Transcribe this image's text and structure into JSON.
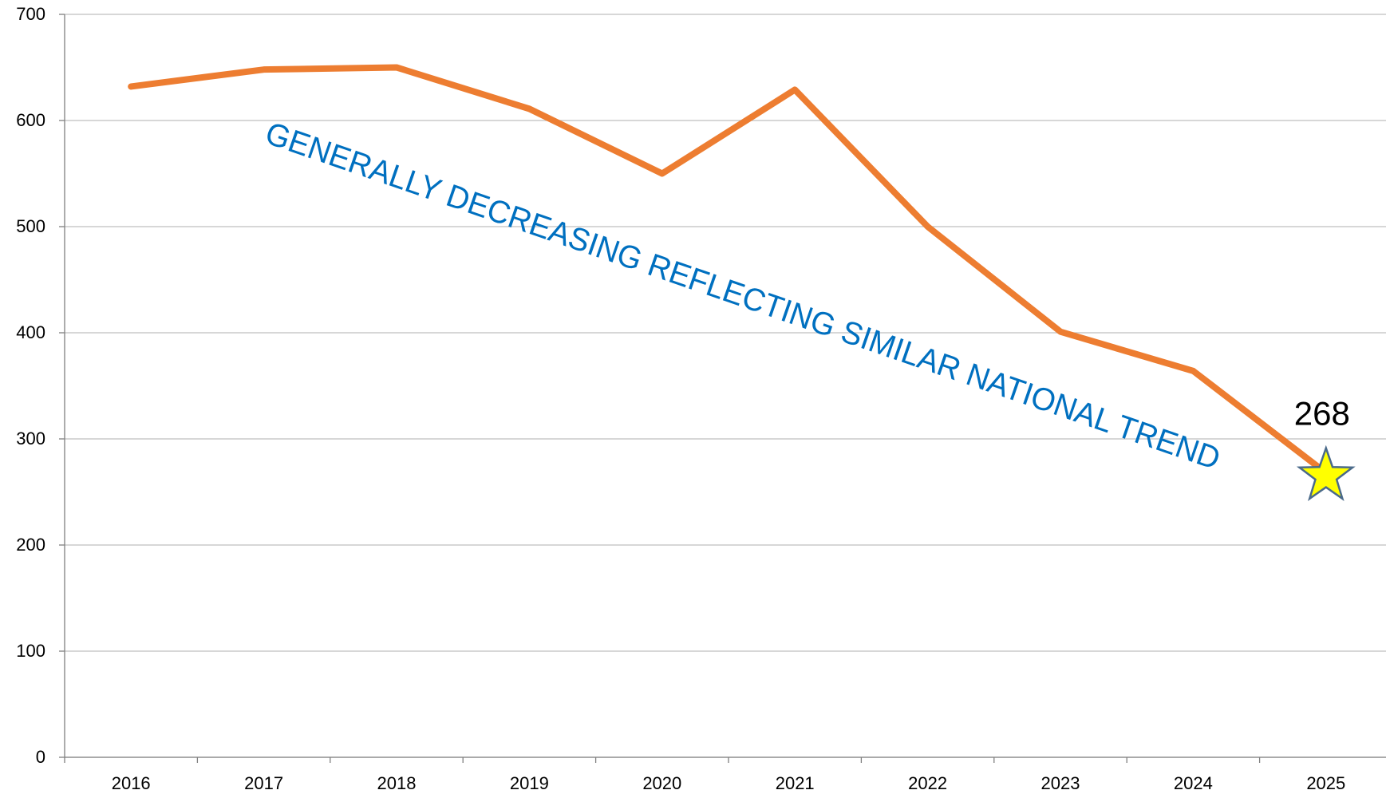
{
  "chart_data": {
    "type": "line",
    "categories": [
      "2016",
      "2017",
      "2018",
      "2019",
      "2020",
      "2021",
      "2022",
      "2023",
      "2024",
      "2025"
    ],
    "values": [
      632,
      648,
      650,
      611,
      550,
      629,
      500,
      401,
      364,
      268
    ],
    "color": "#ED7D31",
    "marker_color": "#FFFF00",
    "annotation": "GENERALLY DECREASING REFLECTING SIMILAR NATIONAL TREND",
    "annotation_color": "#0070C0",
    "ylim": [
      0,
      700
    ],
    "yticks": [
      0,
      100,
      200,
      300,
      400,
      500,
      600,
      700
    ],
    "grid": true
  }
}
